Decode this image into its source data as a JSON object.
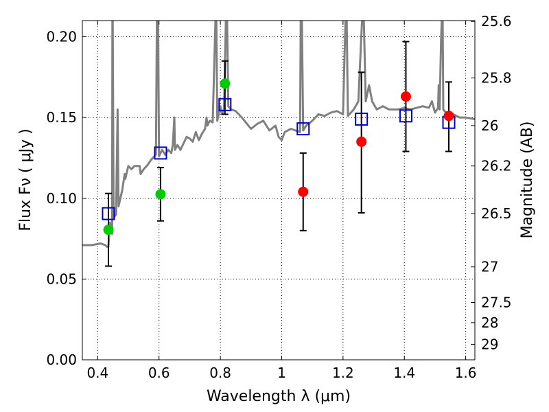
{
  "chart_data": {
    "type": "scatter",
    "xlabel": "Wavelength  λ (μm)",
    "ylabel": "Flux  Fν  ( μJy )",
    "y2label": "Magnitude (AB)",
    "xlim": [
      0.35,
      1.63
    ],
    "ylim": [
      0.0,
      0.21
    ],
    "grid": true,
    "x_ticks": [
      {
        "value": 0.4,
        "label": "0.4"
      },
      {
        "value": 0.6,
        "label": "0.6"
      },
      {
        "value": 0.8,
        "label": "0.8"
      },
      {
        "value": 1.0,
        "label": "1"
      },
      {
        "value": 1.2,
        "label": "1.2"
      },
      {
        "value": 1.4,
        "label": "1.4"
      },
      {
        "value": 1.6,
        "label": "1.6"
      }
    ],
    "y_ticks": [
      {
        "value": 0.0,
        "label": "0.00"
      },
      {
        "value": 0.05,
        "label": "0.05"
      },
      {
        "value": 0.1,
        "label": "0.10"
      },
      {
        "value": 0.15,
        "label": "0.15"
      },
      {
        "value": 0.2,
        "label": "0.20"
      }
    ],
    "y2_ticks": [
      {
        "flux": 0.2095,
        "label": "25.6"
      },
      {
        "flux": 0.1745,
        "label": "25.8"
      },
      {
        "flux": 0.145,
        "label": "26"
      },
      {
        "flux": 0.12,
        "label": "26.2"
      },
      {
        "flux": 0.0905,
        "label": "26.5"
      },
      {
        "flux": 0.0575,
        "label": "27"
      },
      {
        "flux": 0.0355,
        "label": "27.5"
      },
      {
        "flux": 0.023,
        "label": "28"
      },
      {
        "flux": 0.0095,
        "label": "29"
      }
    ],
    "series": [
      {
        "name": "model_spectrum",
        "kind": "line",
        "color": "#808080",
        "points": [
          [
            0.35,
            0.071
          ],
          [
            0.38,
            0.071
          ],
          [
            0.41,
            0.072
          ],
          [
            0.425,
            0.071
          ],
          [
            0.43,
            0.07
          ],
          [
            0.435,
            0.07
          ],
          [
            0.44,
            0.085
          ],
          [
            0.447,
            0.078
          ],
          [
            0.448,
            0.21
          ],
          [
            0.449,
            0.21
          ],
          [
            0.452,
            0.088
          ],
          [
            0.46,
            0.09
          ],
          [
            0.465,
            0.155
          ],
          [
            0.468,
            0.095
          ],
          [
            0.48,
            0.105
          ],
          [
            0.488,
            0.115
          ],
          [
            0.49,
            0.112
          ],
          [
            0.5,
            0.12
          ],
          [
            0.51,
            0.118
          ],
          [
            0.52,
            0.12
          ],
          [
            0.53,
            0.12
          ],
          [
            0.537,
            0.12
          ],
          [
            0.54,
            0.115
          ],
          [
            0.55,
            0.118
          ],
          [
            0.56,
            0.12
          ],
          [
            0.575,
            0.124
          ],
          [
            0.58,
            0.125
          ],
          [
            0.59,
            0.127
          ],
          [
            0.593,
            0.21
          ],
          [
            0.597,
            0.21
          ],
          [
            0.6,
            0.126
          ],
          [
            0.61,
            0.13
          ],
          [
            0.62,
            0.127
          ],
          [
            0.63,
            0.13
          ],
          [
            0.64,
            0.128
          ],
          [
            0.645,
            0.133
          ],
          [
            0.65,
            0.15
          ],
          [
            0.652,
            0.13
          ],
          [
            0.66,
            0.133
          ],
          [
            0.67,
            0.13
          ],
          [
            0.68,
            0.134
          ],
          [
            0.69,
            0.138
          ],
          [
            0.7,
            0.137
          ],
          [
            0.71,
            0.135
          ],
          [
            0.72,
            0.141
          ],
          [
            0.73,
            0.136
          ],
          [
            0.74,
            0.14
          ],
          [
            0.75,
            0.143
          ],
          [
            0.755,
            0.15
          ],
          [
            0.758,
            0.145
          ],
          [
            0.765,
            0.148
          ],
          [
            0.775,
            0.147
          ],
          [
            0.784,
            0.21
          ],
          [
            0.787,
            0.21
          ],
          [
            0.79,
            0.148
          ],
          [
            0.8,
            0.157
          ],
          [
            0.805,
            0.152
          ],
          [
            0.812,
            0.155
          ],
          [
            0.818,
            0.21
          ],
          [
            0.822,
            0.21
          ],
          [
            0.826,
            0.157
          ],
          [
            0.835,
            0.155
          ],
          [
            0.85,
            0.154
          ],
          [
            0.87,
            0.15
          ],
          [
            0.9,
            0.143
          ],
          [
            0.92,
            0.146
          ],
          [
            0.94,
            0.148
          ],
          [
            0.96,
            0.142
          ],
          [
            0.98,
            0.145
          ],
          [
            0.99,
            0.138
          ],
          [
            1.0,
            0.136
          ],
          [
            1.01,
            0.141
          ],
          [
            1.03,
            0.143
          ],
          [
            1.06,
            0.141
          ],
          [
            1.062,
            0.21
          ],
          [
            1.066,
            0.21
          ],
          [
            1.07,
            0.142
          ],
          [
            1.08,
            0.145
          ],
          [
            1.1,
            0.148
          ],
          [
            1.12,
            0.152
          ],
          [
            1.14,
            0.151
          ],
          [
            1.16,
            0.153
          ],
          [
            1.18,
            0.154
          ],
          [
            1.2,
            0.152
          ],
          [
            1.208,
            0.21
          ],
          [
            1.212,
            0.21
          ],
          [
            1.216,
            0.151
          ],
          [
            1.235,
            0.155
          ],
          [
            1.25,
            0.16
          ],
          [
            1.262,
            0.21
          ],
          [
            1.268,
            0.21
          ],
          [
            1.274,
            0.16
          ],
          [
            1.285,
            0.17
          ],
          [
            1.295,
            0.16
          ],
          [
            1.31,
            0.155
          ],
          [
            1.33,
            0.157
          ],
          [
            1.35,
            0.155
          ],
          [
            1.38,
            0.155
          ],
          [
            1.4,
            0.156
          ],
          [
            1.42,
            0.155
          ],
          [
            1.44,
            0.156
          ],
          [
            1.46,
            0.157
          ],
          [
            1.48,
            0.156
          ],
          [
            1.49,
            0.16
          ],
          [
            1.5,
            0.153
          ],
          [
            1.51,
            0.156
          ],
          [
            1.512,
            0.17
          ],
          [
            1.515,
            0.155
          ],
          [
            1.52,
            0.2
          ],
          [
            1.522,
            0.21
          ],
          [
            1.525,
            0.21
          ],
          [
            1.527,
            0.155
          ],
          [
            1.54,
            0.152
          ],
          [
            1.56,
            0.152
          ],
          [
            1.58,
            0.15
          ],
          [
            1.6,
            0.15
          ],
          [
            1.63,
            0.149
          ]
        ]
      },
      {
        "name": "model_photometry",
        "kind": "open-square",
        "color": "#0000cc",
        "points": [
          [
            0.435,
            0.0905
          ],
          [
            0.605,
            0.128
          ],
          [
            0.815,
            0.158
          ],
          [
            1.07,
            0.143
          ],
          [
            1.26,
            0.149
          ],
          [
            1.405,
            0.151
          ],
          [
            1.545,
            0.147
          ]
        ]
      },
      {
        "name": "observed_optical",
        "kind": "filled-circle",
        "color": "#00cc00",
        "points": [
          [
            0.435,
            0.0805
          ],
          [
            0.605,
            0.1025
          ],
          [
            0.815,
            0.171
          ]
        ],
        "errors": [
          [
            0.435,
            0.058,
            0.103
          ],
          [
            0.605,
            0.086,
            0.119
          ],
          [
            0.815,
            0.152,
            0.185
          ]
        ]
      },
      {
        "name": "observed_nir",
        "kind": "filled-circle",
        "color": "#ff0000",
        "points": [
          [
            1.07,
            0.104
          ],
          [
            1.26,
            0.135
          ],
          [
            1.405,
            0.163
          ],
          [
            1.545,
            0.151
          ]
        ],
        "errors": [
          [
            1.07,
            0.08,
            0.128
          ],
          [
            1.26,
            0.091,
            0.178
          ],
          [
            1.405,
            0.129,
            0.197
          ],
          [
            1.545,
            0.129,
            0.172
          ]
        ]
      }
    ]
  },
  "colors": {
    "spectrum": "#808080",
    "model_photometry": "#0000cc",
    "optical": "#00cc00",
    "nir": "#ff0000",
    "axis": "#000000",
    "grid": "#000000"
  }
}
